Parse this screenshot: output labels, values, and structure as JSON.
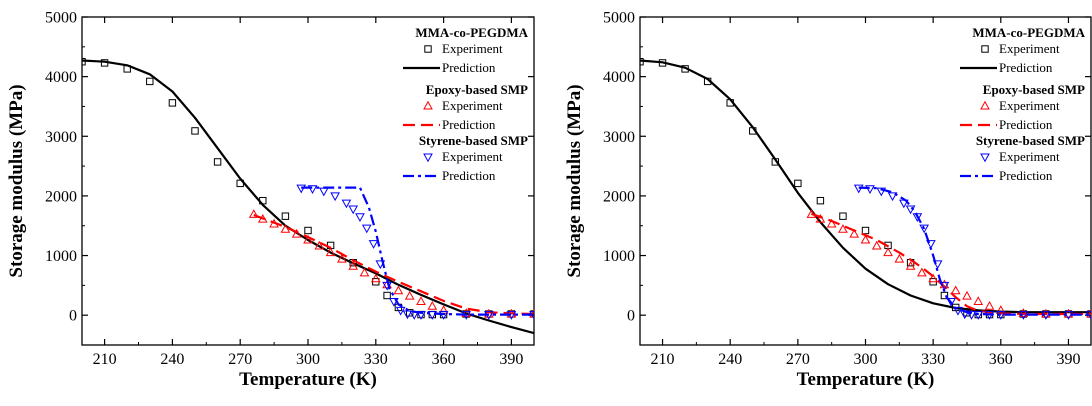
{
  "figure": {
    "panels": [
      {
        "legend": {
          "groups": [
            {
              "name": "MMA-co-PEGDMA",
              "experiment": "Experiment",
              "prediction": "Prediction"
            },
            {
              "name": "Epoxy-based SMP",
              "experiment": "Experiment",
              "prediction": "Prediction"
            },
            {
              "name": "Styrene-based SMP",
              "experiment": "Experiment",
              "prediction": "Prediction"
            }
          ]
        }
      },
      {
        "legend": {
          "groups": [
            {
              "name": "MMA-co-PEGDMA",
              "experiment": "Experiment",
              "prediction": "Prediction"
            },
            {
              "name": "Epoxy-based SMP",
              "experiment": "Experiment",
              "prediction": "Prediction"
            },
            {
              "name": "Styrene-based SMP",
              "experiment": "Experiment",
              "prediction": "Prediction"
            }
          ]
        }
      }
    ]
  },
  "chart_data": [
    {
      "type": "scatter",
      "xlabel": "Temperature (K)",
      "ylabel": "Storage modulus (MPa)",
      "xlim": [
        200,
        400
      ],
      "ylim": [
        -500,
        5000
      ],
      "xticks": [
        210,
        240,
        270,
        300,
        330,
        360,
        390
      ],
      "yticks": [
        0,
        1000,
        2000,
        3000,
        4000,
        5000
      ],
      "grid": false,
      "legend_position": "top-right",
      "colors": {
        "mma": "#000000",
        "epoxy": "#ff0000",
        "styrene": "#0000ff"
      },
      "series": [
        {
          "name": "MMA-co-PEGDMA Experiment",
          "style": "open-square",
          "color": "#000000",
          "x": [
            200,
            210,
            220,
            230,
            240,
            250,
            260,
            270,
            280,
            290,
            300,
            310,
            320,
            330,
            335,
            340,
            345,
            350,
            355,
            360,
            370,
            380,
            390,
            400
          ],
          "y": [
            4250,
            4230,
            4130,
            3920,
            3560,
            3090,
            2570,
            2210,
            1920,
            1660,
            1420,
            1170,
            880,
            560,
            330,
            130,
            40,
            10,
            10,
            10,
            20,
            20,
            20,
            20
          ]
        },
        {
          "name": "MMA-co-PEGDMA Prediction",
          "style": "solid",
          "color": "#000000",
          "x": [
            200,
            210,
            220,
            230,
            240,
            250,
            260,
            270,
            280,
            290,
            300,
            310,
            320,
            330,
            340,
            350,
            360,
            370,
            380,
            390,
            400
          ],
          "y": [
            4270,
            4250,
            4190,
            4040,
            3750,
            3310,
            2800,
            2290,
            1850,
            1500,
            1260,
            1050,
            870,
            700,
            510,
            340,
            180,
            30,
            -90,
            -200,
            -300
          ]
        },
        {
          "name": "Epoxy-based SMP Experiment",
          "style": "open-triangle-up",
          "color": "#ff0000",
          "x": [
            276,
            280,
            285,
            290,
            295,
            300,
            305,
            310,
            315,
            320,
            325,
            330,
            335,
            340,
            345,
            350,
            355,
            360,
            370,
            380,
            390,
            400
          ],
          "y": [
            1690,
            1610,
            1530,
            1440,
            1360,
            1260,
            1160,
            1050,
            940,
            820,
            710,
            610,
            510,
            410,
            320,
            230,
            150,
            80,
            30,
            20,
            20,
            20
          ]
        },
        {
          "name": "Epoxy-based SMP Prediction",
          "style": "dashed",
          "color": "#ff0000",
          "x": [
            276,
            290,
            300,
            310,
            320,
            330,
            340,
            350,
            360,
            370,
            380,
            390,
            400
          ],
          "y": [
            1680,
            1480,
            1310,
            1130,
            920,
            730,
            560,
            400,
            240,
            110,
            50,
            30,
            20
          ]
        },
        {
          "name": "Styrene-based SMP Experiment",
          "style": "open-triangle-down",
          "color": "#0000ff",
          "x": [
            297,
            302,
            307,
            312,
            317,
            320,
            323,
            326,
            329,
            332,
            335,
            338,
            341,
            344,
            347,
            350,
            355,
            360,
            370,
            380,
            390,
            400
          ],
          "y": [
            2130,
            2120,
            2080,
            2000,
            1880,
            1780,
            1650,
            1460,
            1200,
            860,
            500,
            230,
            80,
            20,
            10,
            10,
            10,
            10,
            10,
            10,
            10,
            10
          ]
        },
        {
          "name": "Styrene-based SMP Prediction",
          "style": "dash-dot",
          "color": "#0000ff",
          "x": [
            297,
            305,
            315,
            323,
            327,
            330,
            333,
            336,
            340,
            345,
            350,
            360,
            370,
            380,
            390,
            400
          ],
          "y": [
            2140,
            2140,
            2140,
            2140,
            1800,
            1400,
            900,
            450,
            180,
            70,
            40,
            20,
            10,
            10,
            10,
            10
          ]
        }
      ]
    },
    {
      "type": "scatter",
      "xlabel": "Temperature (K)",
      "ylabel": "Storage modulus (MPa)",
      "xlim": [
        200,
        400
      ],
      "ylim": [
        -500,
        5000
      ],
      "xticks": [
        210,
        240,
        270,
        300,
        330,
        360,
        390
      ],
      "yticks": [
        0,
        1000,
        2000,
        3000,
        4000,
        5000
      ],
      "grid": false,
      "legend_position": "top-right",
      "colors": {
        "mma": "#000000",
        "epoxy": "#ff0000",
        "styrene": "#0000ff"
      },
      "series": [
        {
          "name": "MMA-co-PEGDMA Experiment",
          "style": "open-square",
          "color": "#000000",
          "x": [
            200,
            210,
            220,
            230,
            240,
            250,
            260,
            270,
            280,
            290,
            300,
            310,
            320,
            330,
            335,
            340,
            345,
            350,
            355,
            360,
            370,
            380,
            390,
            400
          ],
          "y": [
            4250,
            4230,
            4130,
            3920,
            3560,
            3090,
            2570,
            2210,
            1920,
            1660,
            1420,
            1170,
            880,
            560,
            330,
            130,
            40,
            10,
            10,
            10,
            20,
            20,
            20,
            20
          ]
        },
        {
          "name": "MMA-co-PEGDMA Prediction",
          "style": "solid",
          "color": "#000000",
          "x": [
            200,
            210,
            220,
            230,
            240,
            250,
            260,
            270,
            280,
            290,
            300,
            310,
            320,
            330,
            340,
            350,
            360,
            370,
            380,
            390,
            400
          ],
          "y": [
            4270,
            4240,
            4150,
            3960,
            3620,
            3150,
            2610,
            2050,
            1560,
            1130,
            780,
            520,
            330,
            200,
            120,
            80,
            60,
            50,
            50,
            50,
            50
          ]
        },
        {
          "name": "Epoxy-based SMP Experiment",
          "style": "open-triangle-up",
          "color": "#ff0000",
          "x": [
            276,
            280,
            285,
            290,
            295,
            300,
            305,
            310,
            315,
            320,
            325,
            330,
            335,
            340,
            345,
            350,
            355,
            360,
            370,
            380,
            390,
            400
          ],
          "y": [
            1690,
            1610,
            1530,
            1440,
            1360,
            1260,
            1160,
            1050,
            940,
            820,
            710,
            610,
            510,
            410,
            320,
            230,
            150,
            80,
            30,
            20,
            20,
            20
          ]
        },
        {
          "name": "Epoxy-based SMP Prediction",
          "style": "dashed",
          "color": "#ff0000",
          "x": [
            276,
            285,
            295,
            305,
            315,
            320,
            325,
            330,
            335,
            340,
            345,
            350,
            360,
            370,
            380,
            390,
            400
          ],
          "y": [
            1700,
            1580,
            1420,
            1260,
            1050,
            930,
            800,
            650,
            480,
            300,
            150,
            70,
            30,
            20,
            20,
            20,
            20
          ]
        },
        {
          "name": "Styrene-based SMP Experiment",
          "style": "open-triangle-down",
          "color": "#0000ff",
          "x": [
            297,
            302,
            307,
            312,
            317,
            320,
            323,
            326,
            329,
            332,
            335,
            338,
            341,
            344,
            347,
            350,
            355,
            360,
            370,
            380,
            390,
            400
          ],
          "y": [
            2130,
            2120,
            2080,
            2000,
            1880,
            1780,
            1650,
            1460,
            1200,
            860,
            500,
            230,
            80,
            20,
            10,
            10,
            10,
            10,
            10,
            10,
            10,
            10
          ]
        },
        {
          "name": "Styrene-based SMP Prediction",
          "style": "dash-dot",
          "color": "#0000ff",
          "x": [
            297,
            305,
            312,
            318,
            322,
            326,
            330,
            333,
            336,
            340,
            345,
            350,
            360,
            370,
            380,
            390,
            400
          ],
          "y": [
            2140,
            2130,
            2060,
            1920,
            1730,
            1450,
            1000,
            600,
            300,
            120,
            50,
            20,
            10,
            10,
            10,
            10,
            10
          ]
        }
      ]
    }
  ]
}
